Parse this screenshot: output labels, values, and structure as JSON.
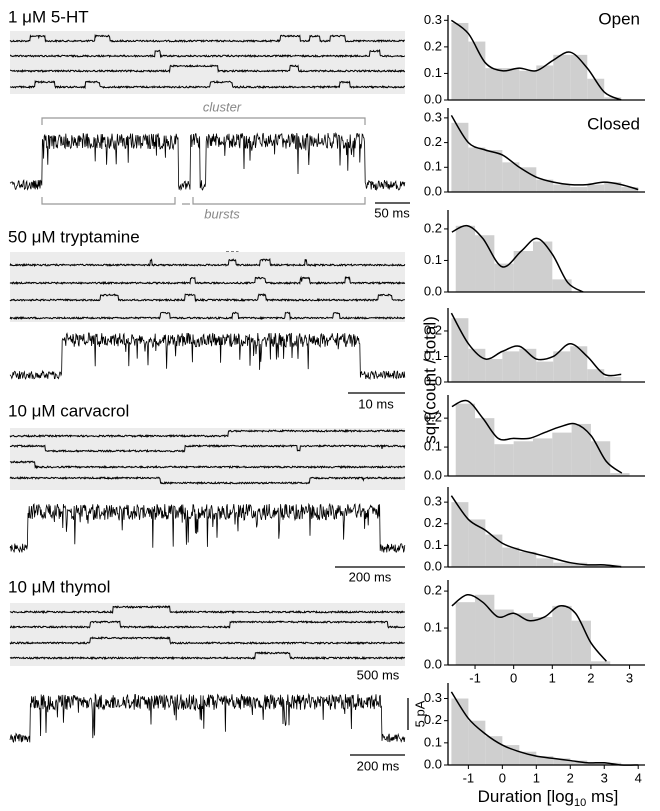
{
  "panels": [
    {
      "label": "1 μM 5-HT",
      "scale_bars": [
        "50 ms"
      ],
      "annotations": [
        "cluster",
        "bursts"
      ]
    },
    {
      "label": "50 μM tryptamine",
      "scale_bars": [
        "10 ms"
      ]
    },
    {
      "label": "10 μM carvacrol",
      "scale_bars": [
        "200 ms"
      ]
    },
    {
      "label": "10 μM thymol",
      "scale_bars": [
        "500 ms",
        "200 ms",
        "5 pA"
      ]
    }
  ],
  "ylabel": "sqrt(count / total)",
  "xlabel": {
    "text": "Duration [log",
    "sub": "10",
    "tail": " ms]"
  },
  "chart_data": [
    {
      "type": "histogram",
      "title": "Open",
      "xlim": [
        -1.6,
        4.2
      ],
      "ylim": [
        0,
        0.32
      ],
      "yticks": [
        {
          "value": 0,
          "label": "0.0"
        },
        0.1,
        0.2,
        0.3
      ],
      "bins": [
        -1.5,
        -1,
        -0.5,
        0,
        0.5,
        1,
        1.5,
        2,
        2.5,
        3,
        3.5
      ],
      "values": [
        0.29,
        0.22,
        0.12,
        0.12,
        0.11,
        0.13,
        0.17,
        0.17,
        0.08,
        0.01
      ],
      "fit": {
        "x": [
          -1.5,
          -1,
          -0.5,
          0,
          0.5,
          1,
          1.5,
          2,
          2.5,
          3,
          3.5
        ],
        "values": [
          0.3,
          0.25,
          0.14,
          0.11,
          0.12,
          0.11,
          0.15,
          0.18,
          0.12,
          0.03,
          0
        ]
      }
    },
    {
      "type": "histogram",
      "title": "Closed",
      "xlim": [
        -1.6,
        4.2
      ],
      "ylim": [
        0,
        0.34
      ],
      "yticks": [
        {
          "value": 0,
          "label": "0.0"
        },
        0.1,
        0.2,
        0.3
      ],
      "bins": [
        -1.5,
        -1,
        -0.5,
        0,
        0.5,
        1,
        1.5,
        2,
        2.5,
        3,
        3.5,
        4
      ],
      "values": [
        0.28,
        0.18,
        0.17,
        0.12,
        0.1,
        0.05,
        0.03,
        0.02,
        0.03,
        0.04,
        0.02
      ],
      "fit": {
        "x": [
          -1.5,
          -1,
          -0.5,
          0,
          0.5,
          1,
          1.5,
          2,
          2.5,
          3,
          3.5,
          4
        ],
        "values": [
          0.31,
          0.2,
          0.17,
          0.15,
          0.1,
          0.06,
          0.04,
          0.03,
          0.03,
          0.04,
          0.03,
          0.01
        ]
      }
    },
    {
      "type": "histogram",
      "xlim": [
        -1.7,
        3.4
      ],
      "ylim": [
        0,
        0.26
      ],
      "yticks": [
        {
          "value": 0,
          "label": "0.0"
        },
        0.1,
        0.2
      ],
      "bins": [
        -1.5,
        -1,
        -0.5,
        0,
        0.5,
        1,
        1.5
      ],
      "values": [
        0.21,
        0.18,
        0.09,
        0.13,
        0.16,
        0.04
      ],
      "fit": {
        "x": [
          -1.6,
          -1.2,
          -0.8,
          -0.3,
          0.2,
          0.6,
          1,
          1.4,
          1.8
        ],
        "values": [
          0.19,
          0.21,
          0.17,
          0.08,
          0.13,
          0.17,
          0.12,
          0.03,
          0
        ]
      }
    },
    {
      "type": "histogram",
      "xlim": [
        -1.6,
        4.2
      ],
      "ylim": [
        0,
        0.29
      ],
      "yticks": [
        {
          "value": 0,
          "label": "0.0"
        },
        0.1,
        0.2
      ],
      "bins": [
        -1.5,
        -1,
        -0.5,
        0,
        0.5,
        1,
        1.5,
        2,
        2.5,
        3,
        3.5
      ],
      "values": [
        0.25,
        0.13,
        0.09,
        0.12,
        0.13,
        0.08,
        0.12,
        0.14,
        0.05,
        0.02
      ],
      "fit": {
        "x": [
          -1.5,
          -1,
          -0.5,
          0,
          0.5,
          1,
          1.5,
          2,
          2.5,
          3,
          3.5
        ],
        "values": [
          0.27,
          0.15,
          0.09,
          0.12,
          0.14,
          0.09,
          0.1,
          0.15,
          0.1,
          0.03,
          0.03
        ]
      }
    },
    {
      "type": "histogram",
      "xlim": [
        -1.7,
        3.4
      ],
      "ylim": [
        0,
        0.28
      ],
      "yticks": [
        {
          "value": 0,
          "label": "0.0"
        },
        0.1,
        0.2
      ],
      "bins": [
        -1.5,
        -1,
        -0.5,
        0,
        0.5,
        1,
        1.5,
        2,
        2.5,
        3
      ],
      "values": [
        0.25,
        0.2,
        0.11,
        0.12,
        0.13,
        0.15,
        0.18,
        0.12,
        0.01
      ],
      "fit": {
        "x": [
          -1.6,
          -1.2,
          -0.8,
          -0.4,
          0,
          0.4,
          0.8,
          1.2,
          1.6,
          2,
          2.4,
          2.8
        ],
        "values": [
          0.24,
          0.26,
          0.2,
          0.13,
          0.13,
          0.13,
          0.15,
          0.17,
          0.18,
          0.14,
          0.05,
          0.01
        ]
      }
    },
    {
      "type": "histogram",
      "xlim": [
        -1.6,
        4.2
      ],
      "ylim": [
        0,
        0.37
      ],
      "yticks": [
        {
          "value": 0,
          "label": "0.0"
        },
        0.1,
        0.2,
        0.3
      ],
      "bins": [
        -1.5,
        -1,
        -0.5,
        0,
        0.5,
        1,
        1.5,
        2,
        2.5,
        3,
        3.5
      ],
      "values": [
        0.3,
        0.22,
        0.15,
        0.09,
        0.07,
        0.04,
        0.02,
        0.02,
        0.01,
        0.01
      ],
      "fit": {
        "x": [
          -1.5,
          -1,
          -0.5,
          0,
          0.5,
          1,
          1.5,
          2,
          2.5,
          3,
          3.5
        ],
        "values": [
          0.33,
          0.22,
          0.17,
          0.11,
          0.08,
          0.06,
          0.04,
          0.02,
          0.01,
          0.01,
          0
        ]
      }
    },
    {
      "type": "histogram",
      "xlim": [
        -1.7,
        3.4
      ],
      "ylim": [
        0,
        0.23
      ],
      "yticks": [
        {
          "value": 0,
          "label": "0.0"
        },
        0.1,
        0.2
      ],
      "xticks": [
        -1,
        0,
        1,
        2,
        3
      ],
      "bins": [
        -1.5,
        -1,
        -0.5,
        0,
        0.5,
        1,
        1.5,
        2,
        2.5
      ],
      "values": [
        0.17,
        0.19,
        0.15,
        0.14,
        0.13,
        0.16,
        0.12,
        0.01
      ],
      "fit": {
        "x": [
          -1.6,
          -1.2,
          -0.8,
          -0.4,
          0,
          0.4,
          0.8,
          1.2,
          1.6,
          2,
          2.4
        ],
        "values": [
          0.16,
          0.19,
          0.17,
          0.13,
          0.14,
          0.12,
          0.13,
          0.16,
          0.14,
          0.06,
          0.01
        ]
      }
    },
    {
      "type": "histogram",
      "xlim": [
        -1.6,
        4.2
      ],
      "ylim": [
        0,
        0.37
      ],
      "yticks": [
        {
          "value": 0,
          "label": "0.0"
        },
        0.1,
        0.2,
        0.3
      ],
      "xticks": [
        -1,
        0,
        1,
        2,
        3,
        4
      ],
      "bins": [
        -1.5,
        -1,
        -0.5,
        0,
        0.5,
        1,
        1.5,
        2,
        2.5,
        3,
        3.5,
        4
      ],
      "values": [
        0.3,
        0.2,
        0.13,
        0.09,
        0.06,
        0.04,
        0.03,
        0.02,
        0.01,
        0.01,
        0
      ],
      "fit": {
        "x": [
          -1.5,
          -1,
          -0.5,
          0,
          0.5,
          1,
          1.5,
          2,
          2.5,
          3,
          3.5,
          4
        ],
        "values": [
          0.33,
          0.21,
          0.14,
          0.09,
          0.06,
          0.04,
          0.03,
          0.02,
          0.01,
          0.01,
          0,
          0
        ]
      }
    }
  ]
}
